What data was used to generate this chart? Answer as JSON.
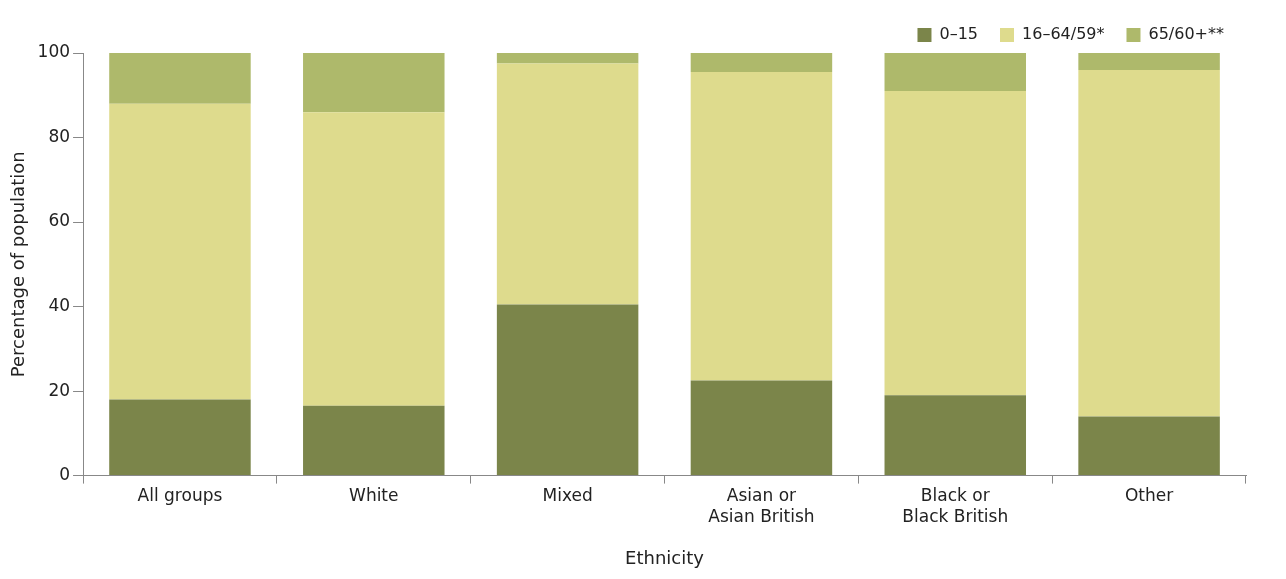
{
  "chart_data": {
    "type": "bar",
    "xlabel": "Ethnicity",
    "ylabel": "Percentage of population",
    "categories": [
      [
        "All groups"
      ],
      [
        "White"
      ],
      [
        "Mixed"
      ],
      [
        "Asian or",
        "Asian British"
      ],
      [
        "Black or",
        "Black British"
      ],
      [
        "Other"
      ]
    ],
    "series": [
      {
        "name": "0–15",
        "color": "#7b854a",
        "values": [
          18,
          16.5,
          40.5,
          22.5,
          19,
          14
        ]
      },
      {
        "name": "16–64/59*",
        "color": "#dedb8d",
        "values": [
          70,
          69.5,
          57,
          73,
          72,
          82
        ]
      },
      {
        "name": "65/60+**",
        "color": "#aeb96b",
        "values": [
          12,
          14,
          2.5,
          4.5,
          9,
          4
        ]
      }
    ],
    "stacked": true,
    "ylim": [
      0,
      100
    ],
    "yticks": [
      0,
      20,
      40,
      60,
      80,
      100
    ],
    "grid": false,
    "legend": "top right"
  }
}
